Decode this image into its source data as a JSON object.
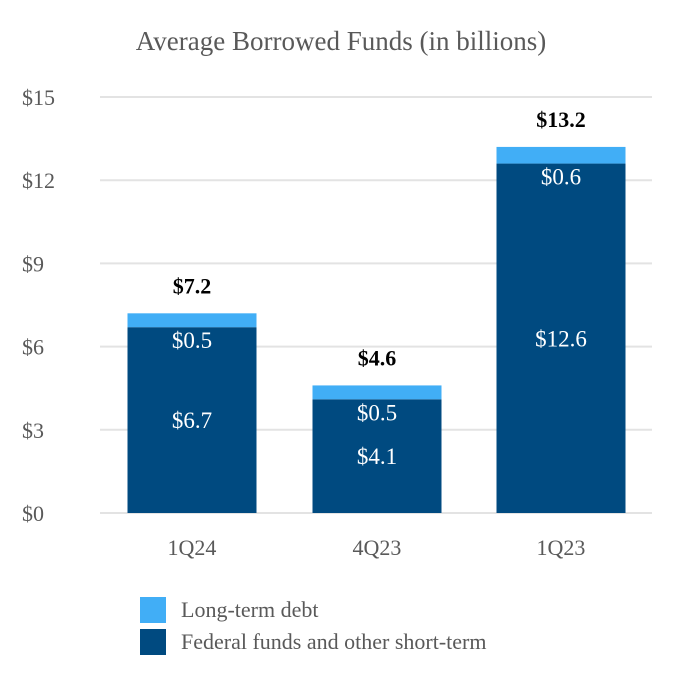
{
  "chart_data": {
    "type": "bar",
    "stacked": true,
    "title": "Average Borrowed Funds (in billions)",
    "xlabel": "",
    "ylabel": "",
    "categories": [
      "1Q24",
      "4Q23",
      "1Q23"
    ],
    "ylim": [
      0,
      15
    ],
    "yticks": [
      0,
      3,
      6,
      9,
      12,
      15
    ],
    "ytick_labels": [
      "$0",
      "$3",
      "$6",
      "$9",
      "$12",
      "$15"
    ],
    "grid": true,
    "legend_position": "bottom",
    "series": [
      {
        "name": "Federal funds and other short-term",
        "color": "#004A80",
        "values": [
          6.7,
          4.1,
          12.6
        ],
        "labels": [
          "$6.7",
          "$4.1",
          "$12.6"
        ]
      },
      {
        "name": "Long-term debt",
        "color": "#41AEF6",
        "values": [
          0.5,
          0.5,
          0.6
        ],
        "labels": [
          "$0.5",
          "$0.5",
          "$0.6"
        ]
      }
    ],
    "totals": [
      7.2,
      4.6,
      13.2
    ],
    "total_labels": [
      "$7.2",
      "$4.6",
      "$13.2"
    ]
  }
}
